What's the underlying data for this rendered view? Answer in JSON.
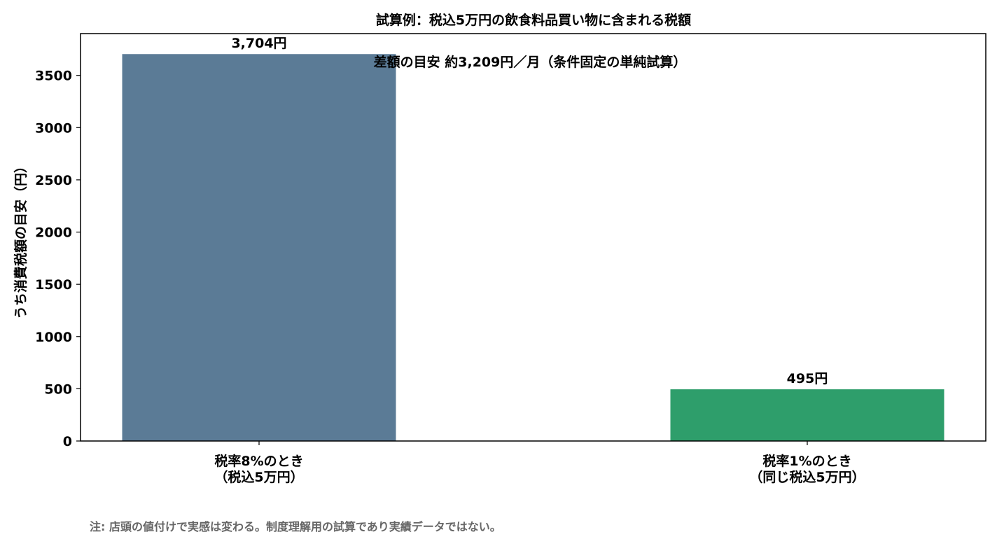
{
  "chart_data": {
    "type": "bar",
    "title": "試算例：税込5万円の飲食料品買い物に含まれる税額",
    "ylabel": "うち消費税額の目安（円）",
    "xlabel": "",
    "categories": [
      [
        "税率8%のとき",
        "（税込5万円）"
      ],
      [
        "税率1%のとき",
        "（同じ税込5万円）"
      ]
    ],
    "values": [
      3704,
      495
    ],
    "value_labels": [
      "3,704円",
      "495円"
    ],
    "colors": [
      "#5b7b96",
      "#2e9e6b"
    ],
    "ylim": [
      0,
      3900
    ],
    "yticks": [
      0,
      500,
      1000,
      1500,
      2000,
      2500,
      3000,
      3500
    ],
    "grid": false,
    "annotation": "差額の目安 約3,209円／月（条件固定の単純試算）"
  },
  "footnote": "注: 店頭の値付けで実感は変わる。制度理解用の試算であり実績データではない。"
}
